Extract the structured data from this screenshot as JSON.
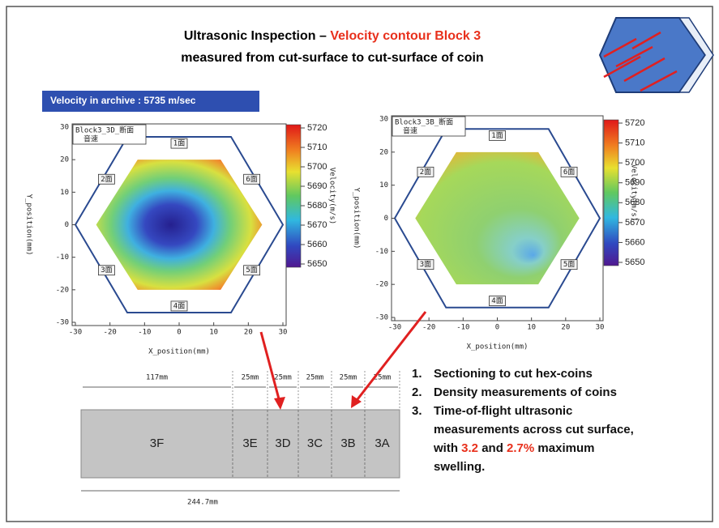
{
  "title": {
    "prefix": "Ultrasonic Inspection – ",
    "highlight": "Velocity contour Block 3",
    "line2": "measured from cut-surface to cut-surface of coin"
  },
  "banner": "Velocity in archive : 5735 m/sec",
  "plots": [
    {
      "name": "Block3_3D_断面",
      "subname": "音速",
      "x_label": "X_position(mm)",
      "y_label": "Y_position(mm)",
      "xticks": [
        -30,
        -20,
        -10,
        0,
        10,
        20,
        30
      ],
      "yticks": [
        -30,
        -20,
        -10,
        0,
        10,
        20,
        30
      ],
      "colorbar_ticks": [
        5720,
        5710,
        5700,
        5690,
        5680,
        5670,
        5660,
        5650
      ],
      "colorbar_label": "Velocity(m/s)",
      "regions": [
        "1面",
        "2面",
        "6面",
        "3面",
        "5面",
        "4面"
      ]
    },
    {
      "name": "Block3_3B_断面",
      "subname": "音速",
      "x_label": "X_position(mm)",
      "y_label": "Y_position(mm)",
      "xticks": [
        -30,
        -20,
        -10,
        0,
        10,
        20,
        30
      ],
      "yticks": [
        -30,
        -20,
        -10,
        0,
        10,
        20,
        30
      ],
      "colorbar_ticks": [
        5720,
        5710,
        5700,
        5690,
        5680,
        5670,
        5660,
        5650
      ],
      "colorbar_label": "Velocity(m/s)",
      "regions": [
        "1面",
        "2面",
        "6面",
        "3面",
        "5面",
        "4面"
      ]
    }
  ],
  "block": {
    "dims": [
      "117mm",
      "25mm",
      "25mm",
      "25mm",
      "25mm",
      "25mm"
    ],
    "total": "244.7mm",
    "sections": [
      "3F",
      "3E",
      "3D",
      "3C",
      "3B",
      "3A"
    ]
  },
  "list": {
    "numbers": [
      "1.",
      "2.",
      "3."
    ],
    "item1": "Sectioning to cut hex-coins",
    "item2": "Density measurements of coins",
    "item3": {
      "line1": "Time-of-flight ultrasonic",
      "line2": "measurements across cut surface,",
      "pre": "with ",
      "red1": "3.2",
      "mid": " and ",
      "red2": "2.7%",
      "post": " maximum",
      "line4": "swelling."
    }
  }
}
